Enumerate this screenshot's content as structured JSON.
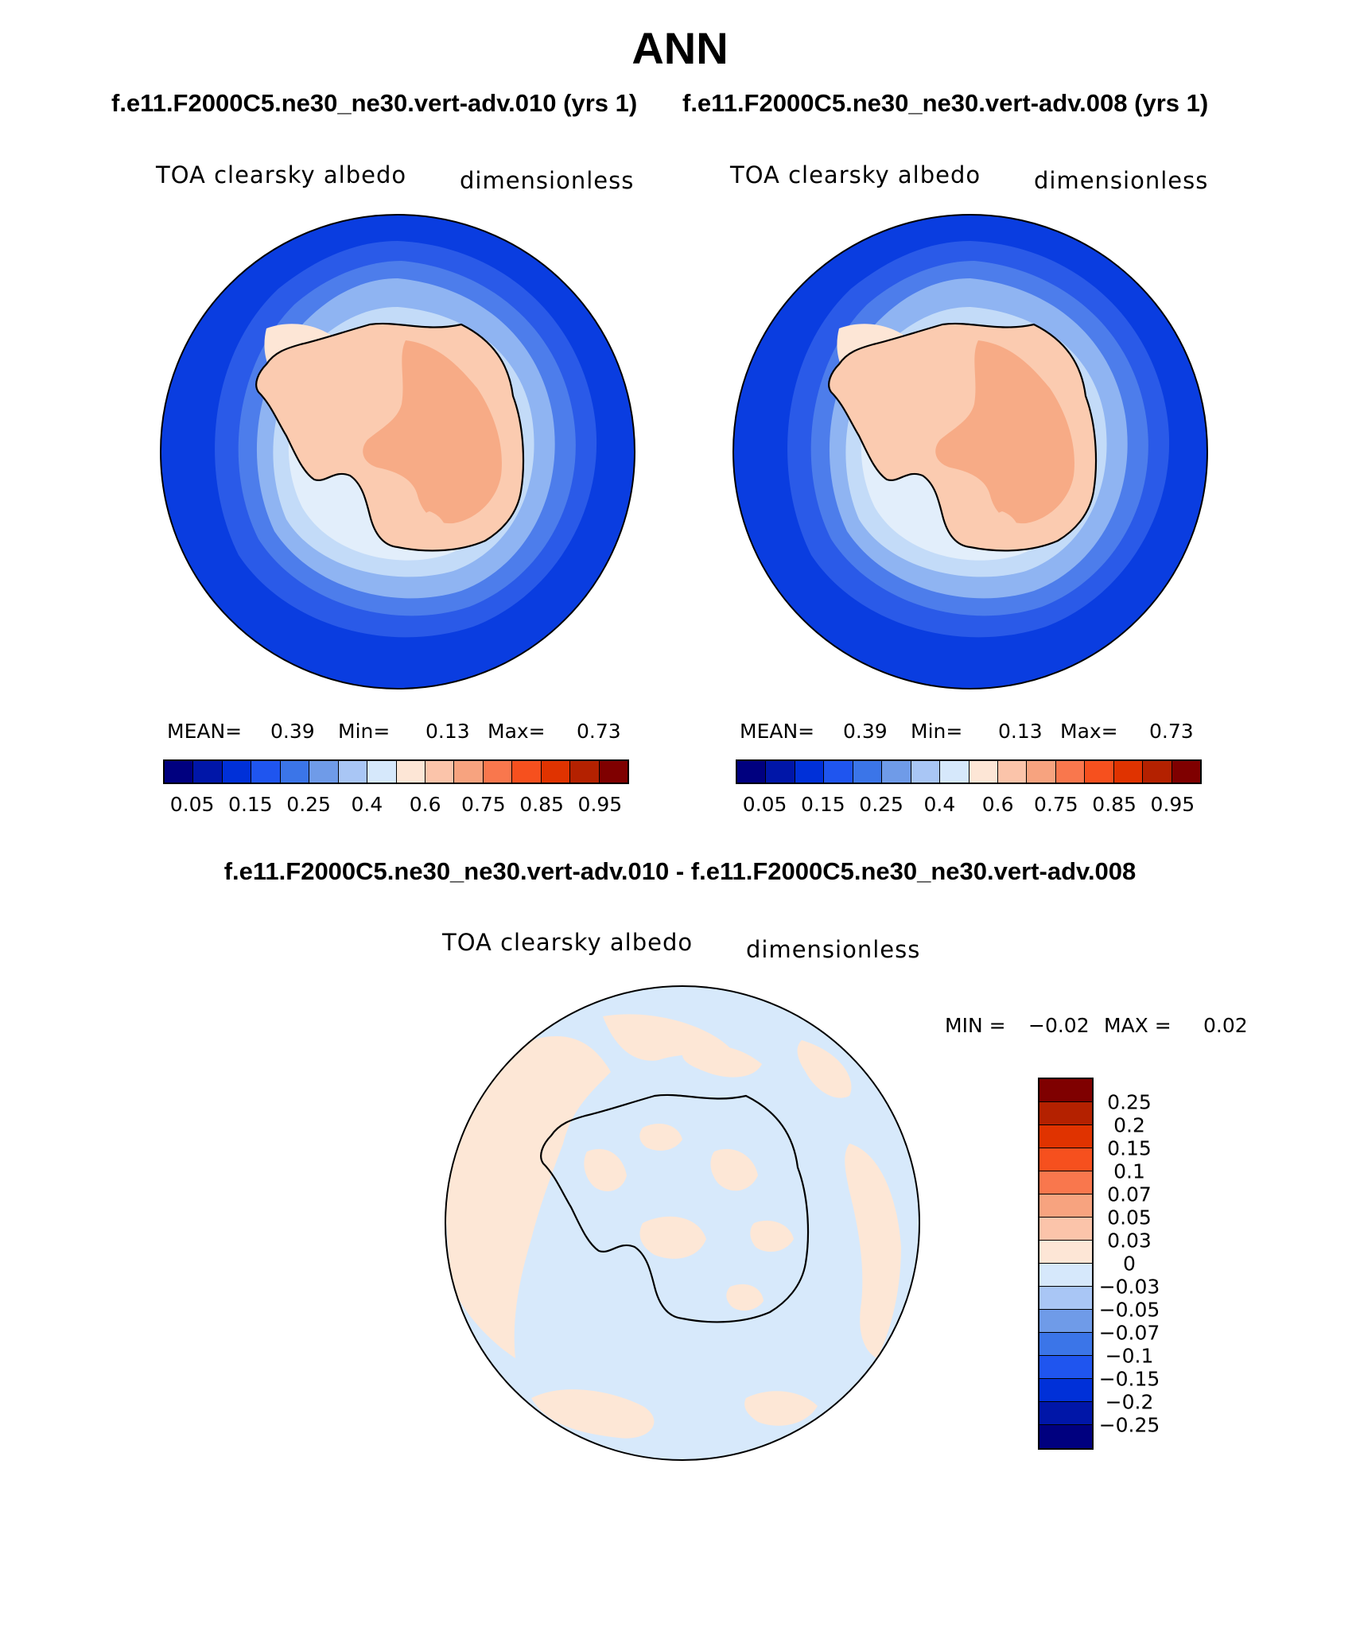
{
  "title": "ANN",
  "subtitle_left": "f.e11.F2000C5.ne30_ne30.vert-adv.010 (yrs 1)",
  "subtitle_right": "f.e11.F2000C5.ne30_ne30.vert-adv.008 (yrs 1)",
  "diff_title": "f.e11.F2000C5.ne30_ne30.vert-adv.010 - f.e11.F2000C5.ne30_ne30.vert-adv.008",
  "panels": [
    {
      "var": "TOA clearsky albedo",
      "units": "dimensionless",
      "mean_label": "MEAN=",
      "mean": "0.39",
      "min_label": "Min=",
      "min": "0.13",
      "max_label": "Max=",
      "max": "0.73"
    },
    {
      "var": "TOA clearsky albedo",
      "units": "dimensionless",
      "mean_label": "MEAN=",
      "mean": "0.39",
      "min_label": "Min=",
      "min": "0.13",
      "max_label": "Max=",
      "max": "0.73"
    }
  ],
  "diff_panel": {
    "var": "TOA clearsky albedo",
    "units": "dimensionless",
    "min_label": "MIN =",
    "min": "−0.02",
    "max_label": "MAX =",
    "max": "0.02"
  },
  "colorbar_main": {
    "colors": [
      "#00007f",
      "#0016a8",
      "#0030d8",
      "#1f55ef",
      "#3b75e8",
      "#6f9be8",
      "#a9c6f5",
      "#d6e8fb",
      "#fde6d6",
      "#fbc4aa",
      "#f7a37f",
      "#f9774d",
      "#f6501e",
      "#e03300",
      "#b42100",
      "#7f0000"
    ],
    "tick_labels": [
      "0.05",
      "0.15",
      "0.25",
      "0.4",
      "0.6",
      "0.75",
      "0.85",
      "0.95"
    ]
  },
  "colorbar_diff": {
    "colors": [
      "#7f0000",
      "#b42100",
      "#e03300",
      "#f6501e",
      "#f9774d",
      "#f7a37f",
      "#fbc4aa",
      "#fde6d6",
      "#d6e8fb",
      "#a9c6f5",
      "#6f9be8",
      "#3b75e8",
      "#1f55ef",
      "#0030d8",
      "#0016a8",
      "#00007f"
    ],
    "tick_labels": [
      "0.25",
      "0.2",
      "0.15",
      "0.1",
      "0.07",
      "0.05",
      "0.03",
      "0",
      "−0.03",
      "−0.05",
      "−0.07",
      "−0.1",
      "−0.15",
      "−0.2",
      "−0.25"
    ]
  },
  "map_colors": {
    "ocean_outer": "#0a3de0",
    "ring2": "#2a5ae8",
    "ring3": "#4d7deb",
    "ring4": "#8fb4f2",
    "ring5": "#c3dbf8",
    "ice": "#e2eefb",
    "land": "#fbcbb0",
    "plateau": "#f7ab86",
    "diff_neg": "#d7e9fb",
    "diff_pos": "#fde7d6"
  }
}
